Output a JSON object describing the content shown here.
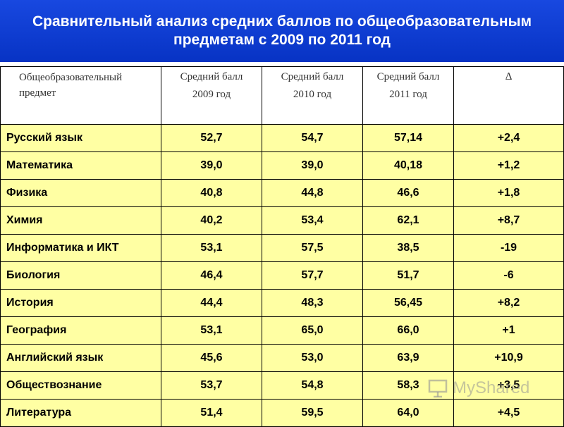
{
  "title": "Сравнительный анализ средних баллов по общеобразовательным предметам с 2009 по 2011 год",
  "columns": [
    {
      "line1": "Общеобразовательный",
      "line2": "предмет"
    },
    {
      "line1": "Средний балл",
      "line2": "2009 год"
    },
    {
      "line1": "Средний балл",
      "line2": "2010 год"
    },
    {
      "line1": "Средний балл",
      "line2": "2011 год"
    },
    {
      "line1": "∆",
      "line2": ""
    }
  ],
  "rows": [
    {
      "subject": "Русский язык",
      "y2009": "52,7",
      "y2010": "54,7",
      "y2011": "57,14",
      "delta": "+2,4"
    },
    {
      "subject": "Математика",
      "y2009": "39,0",
      "y2010": "39,0",
      "y2011": "40,18",
      "delta": "+1,2"
    },
    {
      "subject": "Физика",
      "y2009": "40,8",
      "y2010": "44,8",
      "y2011": "46,6",
      "delta": "+1,8"
    },
    {
      "subject": "Химия",
      "y2009": "40,2",
      "y2010": "53,4",
      "y2011": "62,1",
      "delta": "+8,7"
    },
    {
      "subject": "Информатика и ИКТ",
      "y2009": "53,1",
      "y2010": "57,5",
      "y2011": "38,5",
      "delta": "-19"
    },
    {
      "subject": "Биология",
      "y2009": "46,4",
      "y2010": "57,7",
      "y2011": "51,7",
      "delta": "-6"
    },
    {
      "subject": "История",
      "y2009": "44,4",
      "y2010": "48,3",
      "y2011": "56,45",
      "delta": "+8,2"
    },
    {
      "subject": "География",
      "y2009": "53,1",
      "y2010": "65,0",
      "y2011": "66,0",
      "delta": "+1"
    },
    {
      "subject": "Английский язык",
      "y2009": "45,6",
      "y2010": "53,0",
      "y2011": "63,9",
      "delta": "+10,9"
    },
    {
      "subject": "Обществознание",
      "y2009": "53,7",
      "y2010": "54,8",
      "y2011": "58,3",
      "delta": "+3,5"
    },
    {
      "subject": "Литература",
      "y2009": "51,4",
      "y2010": "59,5",
      "y2011": "64,0",
      "delta": "+4,5"
    }
  ],
  "watermark": "MyShared",
  "watermark_icon": "presentation-board-icon",
  "colors": {
    "banner": "#0b3fd6",
    "row_fill": "#ffffa3",
    "title_text": "#ffffff"
  }
}
